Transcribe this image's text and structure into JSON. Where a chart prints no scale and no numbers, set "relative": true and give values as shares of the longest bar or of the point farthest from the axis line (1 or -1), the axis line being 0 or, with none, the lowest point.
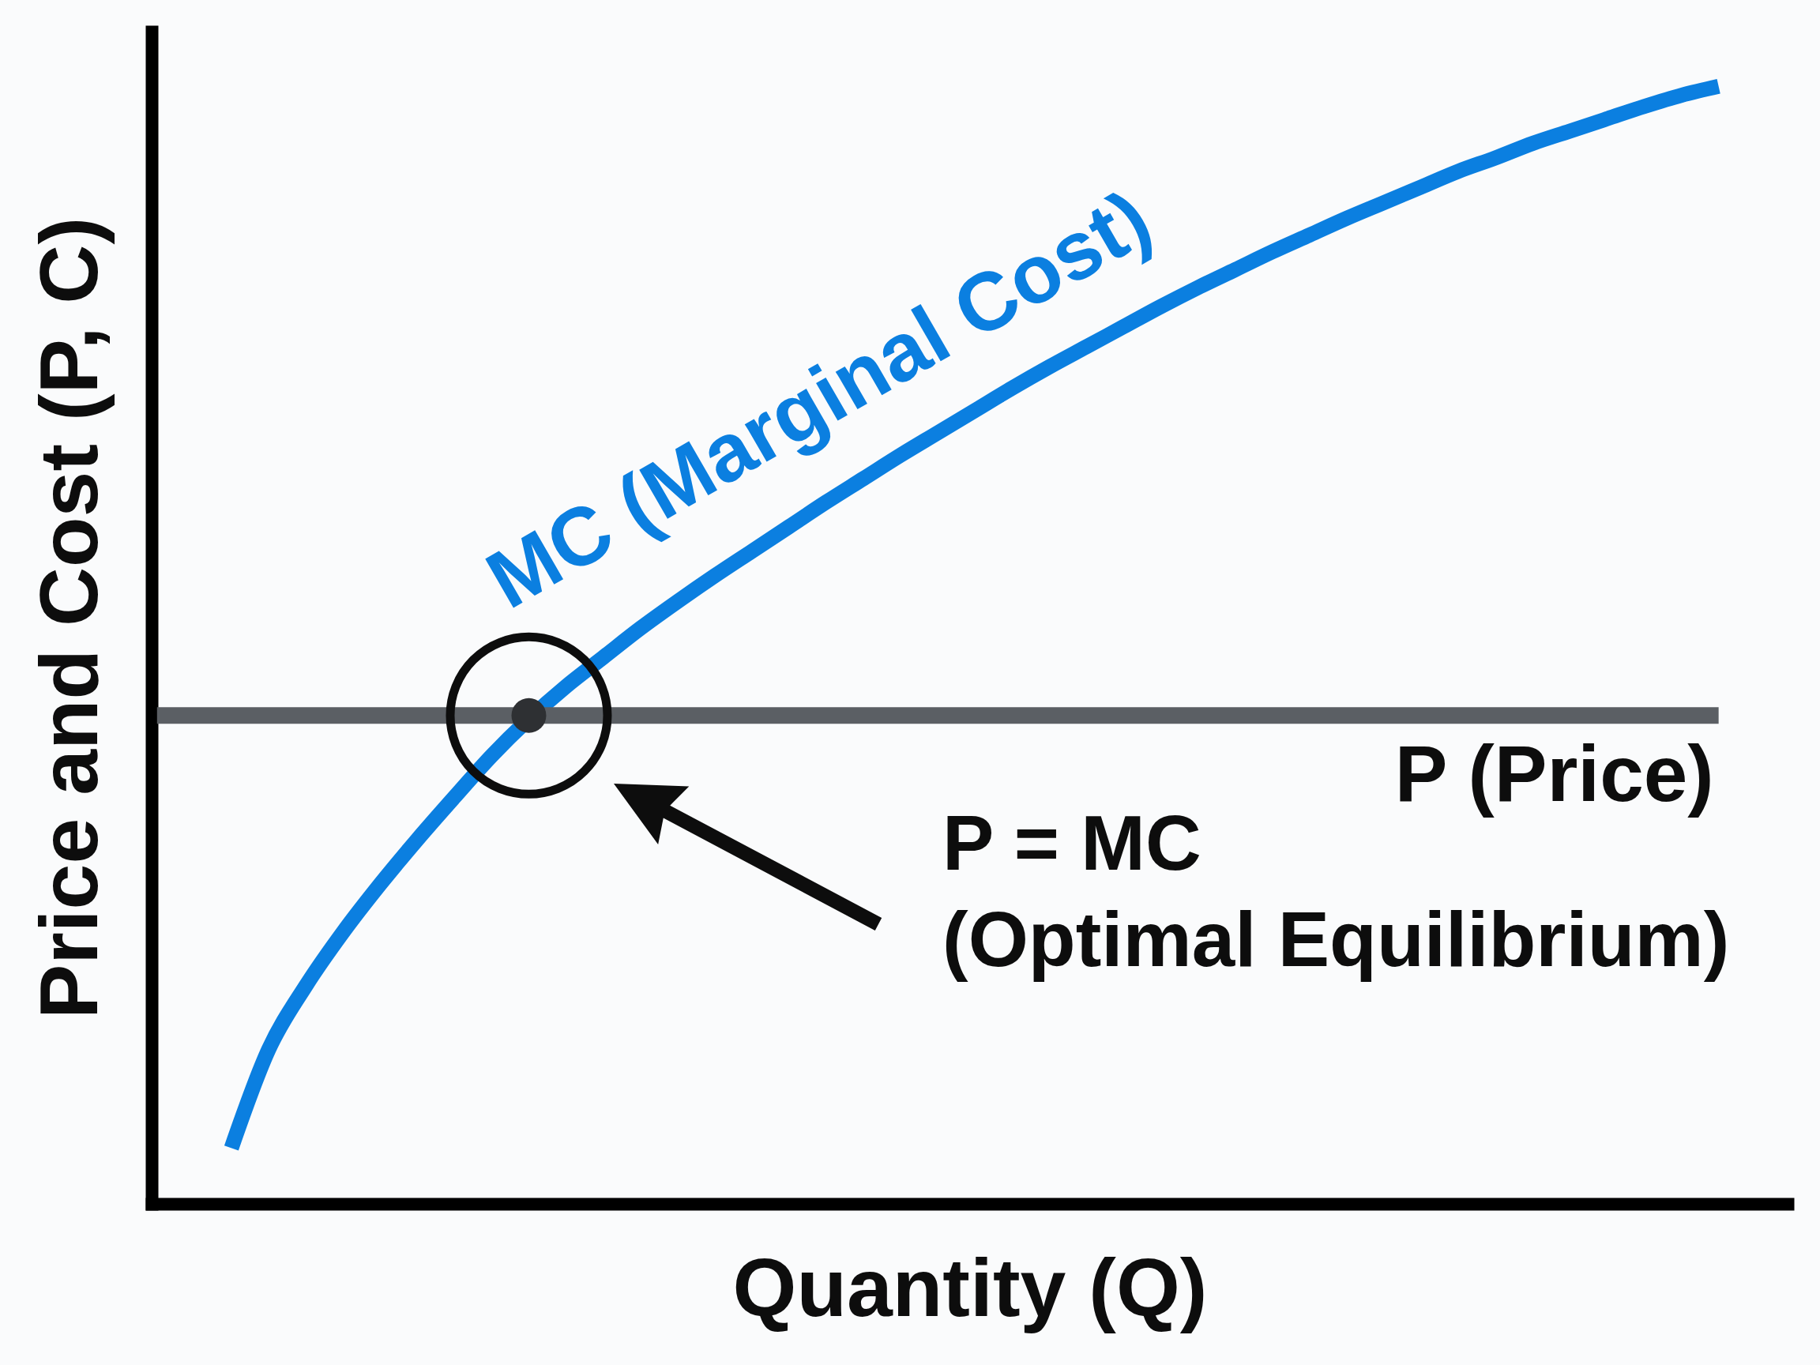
{
  "chart_data": {
    "type": "line",
    "relative": true,
    "xlabel": "Quantity (Q)",
    "ylabel": "Price and Cost (P, C)",
    "categories": [
      null,
      null,
      null,
      null,
      null,
      null,
      null,
      null,
      null,
      null,
      null,
      null,
      null,
      null,
      null,
      null,
      null,
      null,
      null,
      null,
      null,
      null,
      null,
      null,
      null,
      null,
      null,
      null,
      null,
      null,
      null,
      null,
      null,
      null,
      null,
      null,
      null,
      null,
      null,
      null,
      null,
      null,
      null
    ],
    "series": [
      {
        "name": "MC (Marginal Cost)",
        "color": "#0b7fe0",
        "values": [
          null,
          null,
          0.05,
          0.138,
          0.195,
          0.243,
          0.286,
          0.326,
          0.364,
          0.401,
          null,
          0.463,
          0.489,
          0.515,
          0.539,
          0.562,
          0.584,
          0.606,
          0.628,
          0.649,
          0.67,
          0.69,
          0.71,
          0.73,
          0.749,
          0.767,
          0.785,
          0.803,
          0.82,
          0.836,
          0.852,
          0.867,
          0.882,
          0.896,
          0.91,
          0.924,
          0.936,
          0.949,
          0.96,
          0.971,
          0.982,
          0.992,
          1
        ]
      },
      {
        "name": "P (Price)",
        "color": "#5b5f64",
        "values": [
          0.437,
          0.437,
          0.437,
          0.437,
          0.437,
          0.437,
          0.437,
          0.437,
          0.437,
          0.437,
          null,
          0.437,
          0.437,
          0.437,
          0.437,
          0.437,
          0.437,
          0.437,
          0.437,
          0.437,
          0.437,
          0.437,
          0.437,
          0.437,
          0.437,
          0.437,
          0.437,
          0.437,
          0.437,
          0.437,
          0.437,
          0.437,
          0.437,
          0.437,
          0.437,
          0.437,
          0.437,
          0.437,
          0.437,
          0.437,
          0.437,
          0.437,
          0.437
        ]
      },
      {
        "color": "#2e3033",
        "marker": "circle",
        "values": [
          null,
          null,
          null,
          null,
          null,
          null,
          null,
          null,
          null,
          null,
          0.437,
          null,
          null,
          null,
          null,
          null,
          null,
          null,
          null,
          null,
          null,
          null,
          null,
          null,
          null,
          null,
          null,
          null,
          null,
          null,
          null,
          null,
          null,
          null,
          null,
          null,
          null,
          null,
          null,
          null,
          null,
          null,
          null
        ]
      }
    ],
    "annotations": [
      "P = MC\n(Optimal Equilibrium)"
    ]
  }
}
